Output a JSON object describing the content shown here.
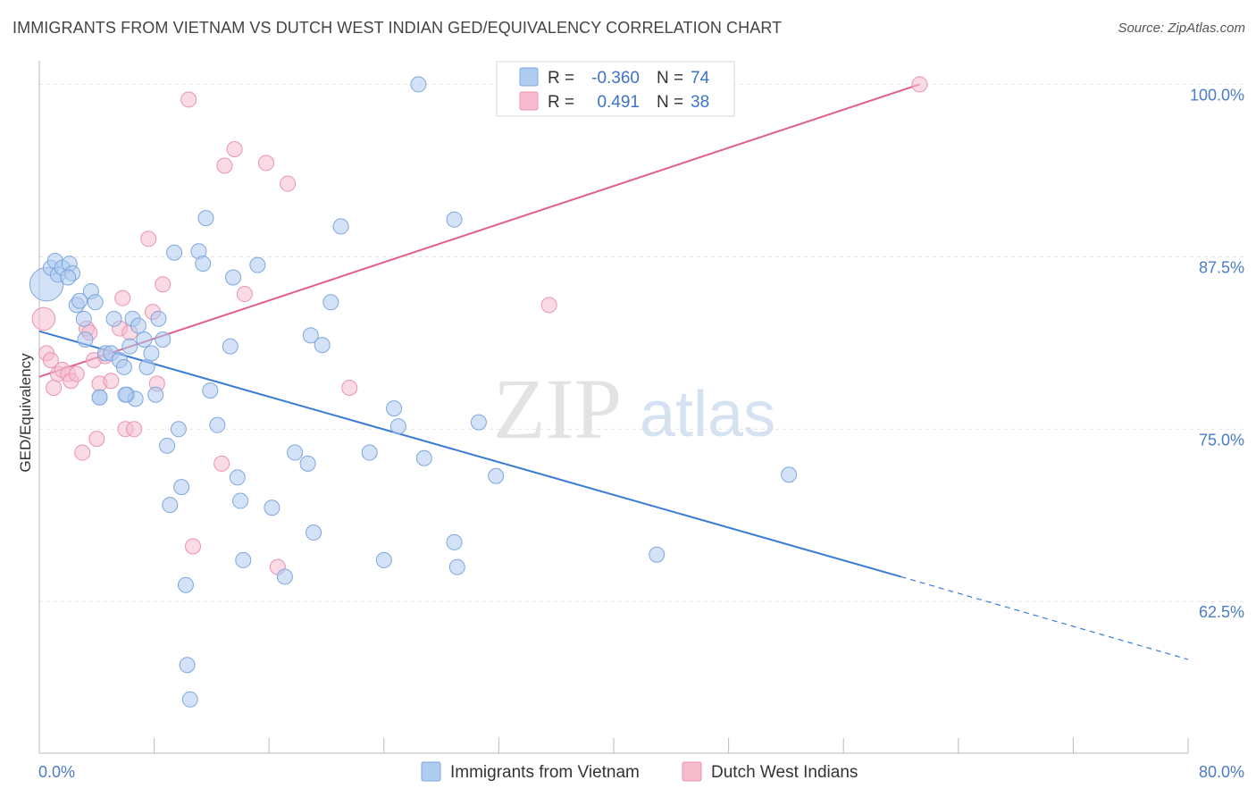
{
  "header": {
    "title": "IMMIGRANTS FROM VIETNAM VS DUTCH WEST INDIAN GED/EQUIVALENCY CORRELATION CHART",
    "source": "Source: ZipAtlas.com"
  },
  "watermark": {
    "zip": "ZIP",
    "atlas": "atlas"
  },
  "colors": {
    "blue_fill": "#aecbf0",
    "blue_stroke": "#7ea7dd",
    "blue_line": "#3a7bd5",
    "pink_fill": "#f6bccd",
    "pink_stroke": "#e994b0",
    "pink_line": "#e0608a",
    "axis_text": "#4a7cc9",
    "grid": "#e2e2e2"
  },
  "legend": {
    "rows": [
      {
        "r_label": "R =",
        "r_value": "-0.360",
        "n_label": "N =",
        "n_value": "74"
      },
      {
        "r_label": "R =",
        "r_value": "0.491",
        "n_label": "N =",
        "n_value": "38"
      }
    ]
  },
  "chart_data": {
    "type": "scatter",
    "title": "IMMIGRANTS FROM VIETNAM VS DUTCH WEST INDIAN GED/EQUIVALENCY CORRELATION CHART",
    "xlabel": "",
    "ylabel": "GED/Equivalency",
    "xlim": [
      0,
      80
    ],
    "ylim": [
      51.5,
      101
    ],
    "x_tick_labels": [
      "0.0%",
      "80.0%"
    ],
    "y_ticks": [
      62.5,
      75.0,
      87.5,
      100.0
    ],
    "y_tick_labels": [
      "62.5%",
      "75.0%",
      "87.5%",
      "100.0%"
    ],
    "grid": true,
    "legend_position": "top-center and bottom",
    "series": [
      {
        "name": "Immigrants from Vietnam",
        "r": -0.36,
        "n": 74,
        "trend": {
          "x0": 0,
          "y0": 82.1,
          "x1": 60,
          "y1": 64.3,
          "dash_to_x": 80,
          "dash_to_y": 58.3
        },
        "points": [
          [
            0.5,
            85.5,
            2.2
          ],
          [
            0.8,
            86.7,
            1
          ],
          [
            1.1,
            87.2,
            1
          ],
          [
            1.3,
            86.2,
            1
          ],
          [
            1.6,
            86.7,
            1
          ],
          [
            2.1,
            87.0,
            1
          ],
          [
            2.3,
            86.3,
            1
          ],
          [
            2.6,
            84.0,
            1
          ],
          [
            2.8,
            84.3,
            1
          ],
          [
            3.1,
            83.0,
            1
          ],
          [
            3.2,
            81.5,
            1
          ],
          [
            3.6,
            85.0,
            1
          ],
          [
            3.9,
            84.2,
            1
          ],
          [
            4.2,
            77.3,
            1
          ],
          [
            4.6,
            80.5,
            1
          ],
          [
            5.0,
            80.5,
            1
          ],
          [
            5.2,
            83.0,
            1
          ],
          [
            5.6,
            80.0,
            1
          ],
          [
            5.9,
            79.5,
            1
          ],
          [
            6.1,
            77.5,
            1
          ],
          [
            6.3,
            81.0,
            1
          ],
          [
            6.5,
            83.0,
            1
          ],
          [
            6.7,
            77.2,
            1
          ],
          [
            6.9,
            82.5,
            1
          ],
          [
            7.3,
            81.5,
            1
          ],
          [
            7.5,
            79.5,
            1
          ],
          [
            7.8,
            80.5,
            1
          ],
          [
            8.1,
            77.5,
            1
          ],
          [
            8.3,
            83.0,
            1
          ],
          [
            8.6,
            81.5,
            1
          ],
          [
            8.9,
            73.8,
            1
          ],
          [
            9.4,
            87.8,
            1
          ],
          [
            9.9,
            70.8,
            1
          ],
          [
            9.7,
            75.0,
            1
          ],
          [
            11.1,
            87.9,
            1
          ],
          [
            11.4,
            87.0,
            1
          ],
          [
            11.6,
            90.3,
            1
          ],
          [
            11.9,
            77.8,
            1
          ],
          [
            12.4,
            75.3,
            1
          ],
          [
            13.3,
            81.0,
            1
          ],
          [
            13.5,
            86.0,
            1
          ],
          [
            13.8,
            71.5,
            1
          ],
          [
            14.0,
            69.8,
            1
          ],
          [
            14.2,
            65.5,
            1
          ],
          [
            15.2,
            86.9,
            1
          ],
          [
            16.2,
            69.3,
            1
          ],
          [
            17.1,
            64.3,
            1
          ],
          [
            17.8,
            73.3,
            1
          ],
          [
            18.7,
            72.5,
            1
          ],
          [
            18.9,
            81.8,
            1
          ],
          [
            19.1,
            67.5,
            1
          ],
          [
            19.7,
            81.1,
            1
          ],
          [
            20.3,
            84.2,
            1
          ],
          [
            21.0,
            89.7,
            1
          ],
          [
            23.0,
            73.3,
            1
          ],
          [
            24.0,
            65.5,
            1
          ],
          [
            24.7,
            76.5,
            1
          ],
          [
            25.0,
            75.2,
            1
          ],
          [
            26.4,
            100.0,
            1
          ],
          [
            26.8,
            72.9,
            1
          ],
          [
            28.9,
            66.8,
            1
          ],
          [
            29.1,
            65.0,
            1
          ],
          [
            28.9,
            90.2,
            1
          ],
          [
            30.6,
            75.5,
            1
          ],
          [
            31.8,
            71.6,
            1
          ],
          [
            43.0,
            65.9,
            1
          ],
          [
            52.2,
            71.7,
            1
          ],
          [
            4.2,
            77.3,
            1
          ],
          [
            10.2,
            63.7,
            1
          ],
          [
            10.3,
            57.9,
            1
          ],
          [
            10.5,
            55.4,
            1
          ],
          [
            9.1,
            69.5,
            1
          ],
          [
            6.0,
            77.5,
            1
          ],
          [
            2.0,
            86.0,
            1
          ]
        ]
      },
      {
        "name": "Dutch West Indians",
        "r": 0.491,
        "n": 38,
        "trend": {
          "x0": 0,
          "y0": 78.8,
          "x1": 61.3,
          "y1": 100.0
        },
        "points": [
          [
            0.3,
            83.0,
            1.5
          ],
          [
            0.5,
            80.5,
            1
          ],
          [
            0.8,
            80.0,
            1
          ],
          [
            1.0,
            78.0,
            1
          ],
          [
            1.3,
            79.0,
            1
          ],
          [
            1.6,
            79.3,
            1
          ],
          [
            2.0,
            79.0,
            1
          ],
          [
            2.2,
            78.5,
            1
          ],
          [
            2.6,
            79.0,
            1
          ],
          [
            3.0,
            73.3,
            1
          ],
          [
            3.3,
            82.3,
            1
          ],
          [
            3.5,
            82.0,
            1
          ],
          [
            3.8,
            80.0,
            1
          ],
          [
            4.0,
            74.3,
            1
          ],
          [
            4.2,
            78.3,
            1
          ],
          [
            4.6,
            80.3,
            1
          ],
          [
            5.0,
            78.5,
            1
          ],
          [
            5.6,
            82.3,
            1
          ],
          [
            5.8,
            84.5,
            1
          ],
          [
            6.0,
            75.0,
            1
          ],
          [
            6.3,
            82.0,
            1
          ],
          [
            6.6,
            75.0,
            1
          ],
          [
            7.6,
            88.8,
            1
          ],
          [
            7.9,
            83.5,
            1
          ],
          [
            8.2,
            78.3,
            1
          ],
          [
            8.6,
            85.5,
            1
          ],
          [
            10.4,
            98.9,
            1
          ],
          [
            10.7,
            66.5,
            1
          ],
          [
            12.7,
            72.5,
            1
          ],
          [
            12.9,
            94.1,
            1
          ],
          [
            13.6,
            95.3,
            1
          ],
          [
            14.3,
            84.8,
            1
          ],
          [
            15.8,
            94.3,
            1
          ],
          [
            16.6,
            65.0,
            1
          ],
          [
            17.3,
            92.8,
            1
          ],
          [
            21.6,
            78.0,
            1
          ],
          [
            35.5,
            84.0,
            1
          ],
          [
            61.3,
            100.0,
            1
          ]
        ]
      }
    ]
  },
  "bottom_legend": {
    "items": [
      "Immigrants from Vietnam",
      "Dutch West Indians"
    ]
  }
}
